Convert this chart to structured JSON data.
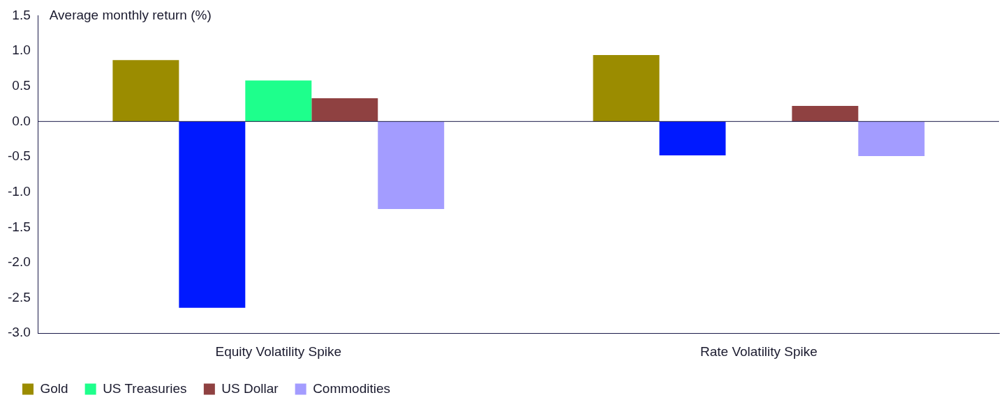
{
  "chart_data": {
    "type": "bar",
    "ylabel": "Average monthly return (%)",
    "categories": [
      "Equity Volatility Spike",
      "Rate Volatility Spike"
    ],
    "series": [
      {
        "name": "Gold",
        "color": "#9b8c00",
        "values": [
          0.87,
          0.94
        ]
      },
      {
        "color": "#0019ff",
        "values": [
          -2.64,
          -0.48
        ]
      },
      {
        "name": "US Treasuries",
        "color": "#1eff8c",
        "values": [
          0.58,
          0.0
        ]
      },
      {
        "name": "US Dollar",
        "color": "#8f4141",
        "values": [
          0.33,
          0.22
        ]
      },
      {
        "name": "Commodities",
        "color": "#a39cff",
        "values": [
          -1.24,
          -0.49
        ]
      }
    ],
    "ylim": [
      -3.0,
      1.5
    ],
    "yticks": [
      {
        "value": -3,
        "label": "-3.0"
      },
      {
        "value": -2.5,
        "label": "-2.5"
      },
      {
        "value": -2,
        "label": "-2.0"
      },
      {
        "value": -1.5,
        "label": "-1.5"
      },
      {
        "value": -1,
        "label": "-1.0"
      },
      {
        "value": -0.5,
        "label": "-0.5"
      },
      {
        "value": 0,
        "label": "0.0"
      },
      {
        "value": 0.5,
        "label": "0.5"
      },
      {
        "value": 1,
        "label": "1.0"
      },
      {
        "value": 1.5,
        "label": "1.5"
      }
    ],
    "legend": "bottom left"
  }
}
